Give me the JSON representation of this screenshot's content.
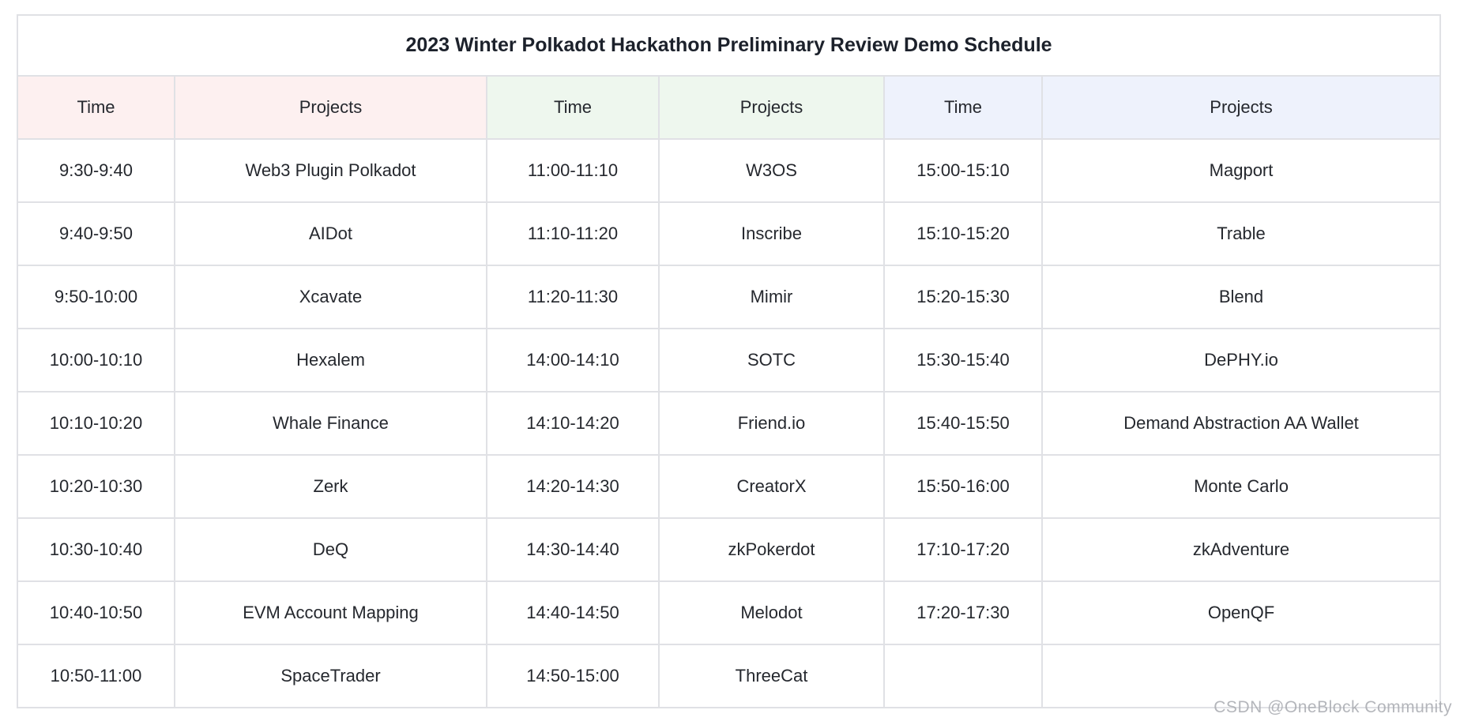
{
  "page": {
    "title": "2023 Winter Polkadot Hackathon Preliminary Review Demo Schedule"
  },
  "table": {
    "headers": [
      {
        "label": "Time",
        "theme": "pink"
      },
      {
        "label": "Projects",
        "theme": "pink"
      },
      {
        "label": "Time",
        "theme": "green"
      },
      {
        "label": "Projects",
        "theme": "green"
      },
      {
        "label": "Time",
        "theme": "blue"
      },
      {
        "label": "Projects",
        "theme": "blue"
      }
    ],
    "rows": [
      [
        "9:30-9:40",
        "Web3 Plugin Polkadot",
        "11:00-11:10",
        "W3OS",
        "15:00-15:10",
        "Magport"
      ],
      [
        "9:40-9:50",
        "AIDot",
        "11:10-11:20",
        "Inscribe",
        "15:10-15:20",
        "Trable"
      ],
      [
        "9:50-10:00",
        "Xcavate",
        "11:20-11:30",
        "Mimir",
        "15:20-15:30",
        "Blend"
      ],
      [
        "10:00-10:10",
        "Hexalem",
        "14:00-14:10",
        "SOTC",
        "15:30-15:40",
        "DePHY.io"
      ],
      [
        "10:10-10:20",
        "Whale Finance",
        "14:10-14:20",
        "Friend.io",
        "15:40-15:50",
        "Demand Abstraction AA Wallet"
      ],
      [
        "10:20-10:30",
        "Zerk",
        "14:20-14:30",
        "CreatorX",
        "15:50-16:00",
        "Monte Carlo"
      ],
      [
        "10:30-10:40",
        "DeQ",
        "14:30-14:40",
        "zkPokerdot",
        "17:10-17:20",
        "zkAdventure"
      ],
      [
        "10:40-10:50",
        "EVM Account Mapping",
        "14:40-14:50",
        "Melodot",
        "17:20-17:30",
        "OpenQF"
      ],
      [
        "10:50-11:00",
        "SpaceTrader",
        "14:50-15:00",
        "ThreeCat",
        "",
        ""
      ]
    ]
  },
  "watermark": {
    "text": "CSDN @OneBlock Community"
  },
  "colors": {
    "header_pink": "#fdf0f0",
    "header_green": "#eef7ee",
    "header_blue": "#eef2fc",
    "border": "#e0e1e5",
    "text": "#25282e",
    "watermark": "#a8aab0"
  }
}
